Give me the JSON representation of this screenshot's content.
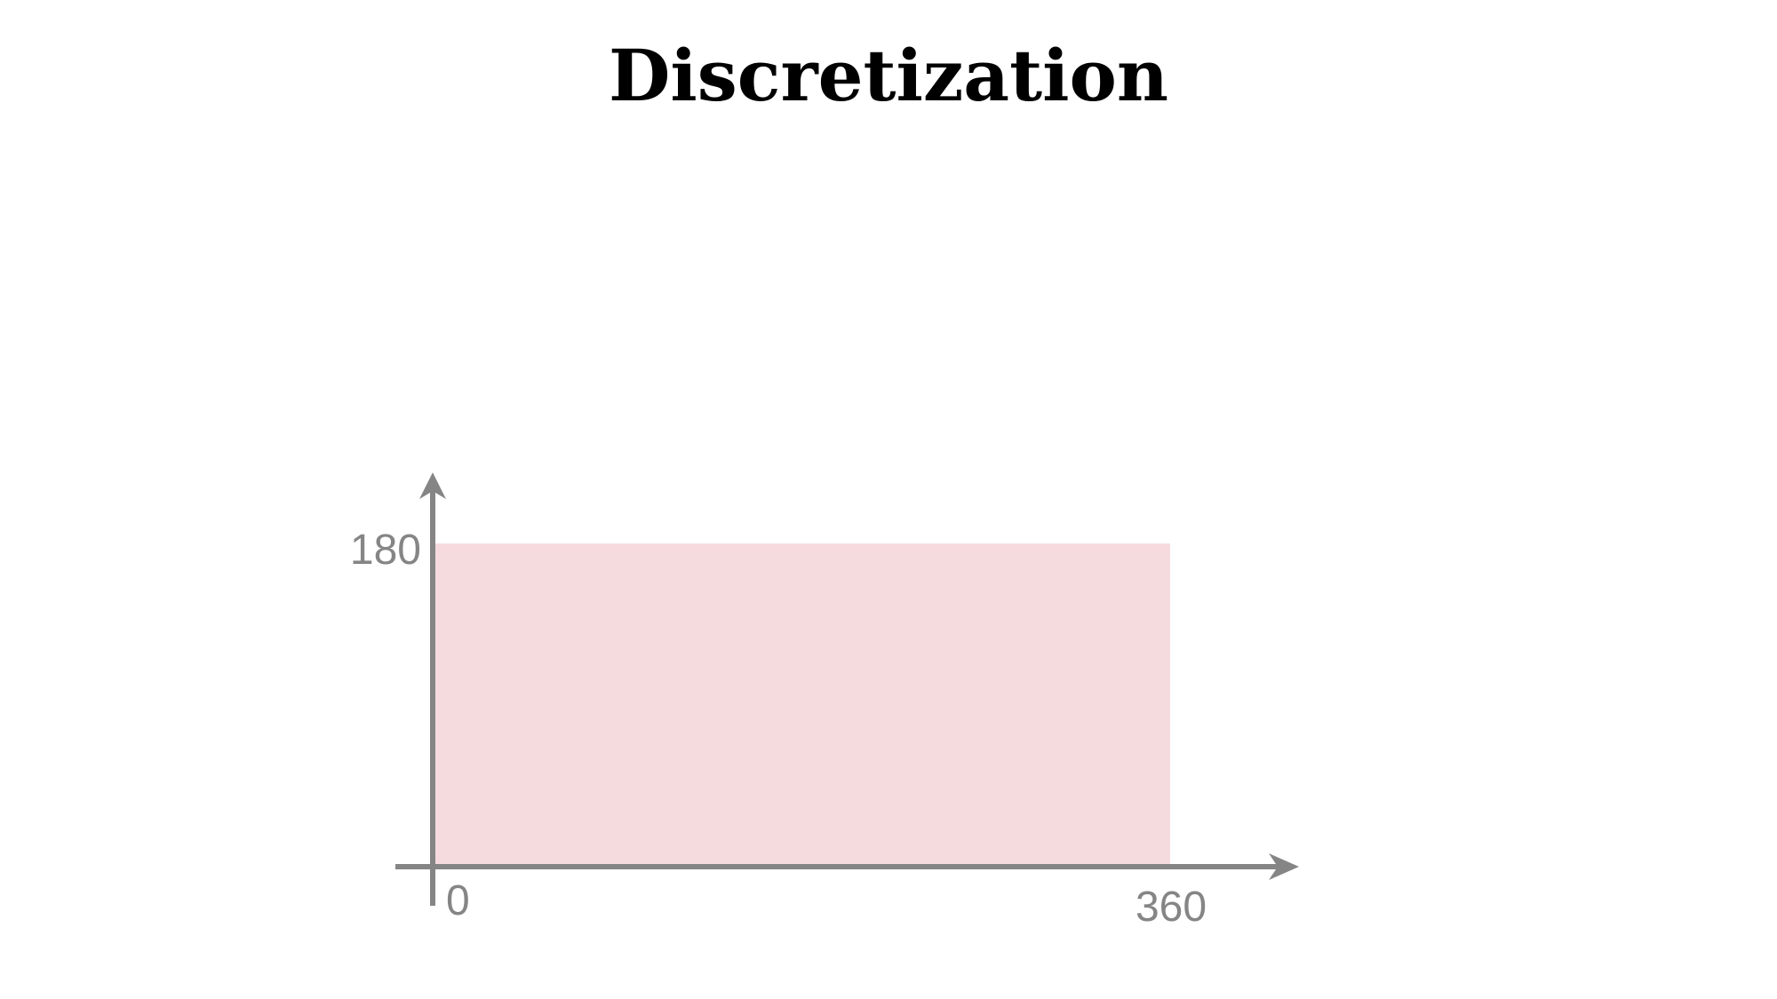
{
  "slide": {
    "title": "Discretization"
  },
  "diagram": {
    "x_axis": {
      "min_label": "0",
      "max_label": "360",
      "range": [
        0,
        360
      ]
    },
    "y_axis": {
      "max_label": "180",
      "range": [
        0,
        180
      ]
    },
    "region": {
      "x": [
        0,
        360
      ],
      "y": [
        0,
        180
      ]
    }
  },
  "colors": {
    "axis": "#858585",
    "region_fill": "#f6dbde",
    "title": "#000000"
  }
}
